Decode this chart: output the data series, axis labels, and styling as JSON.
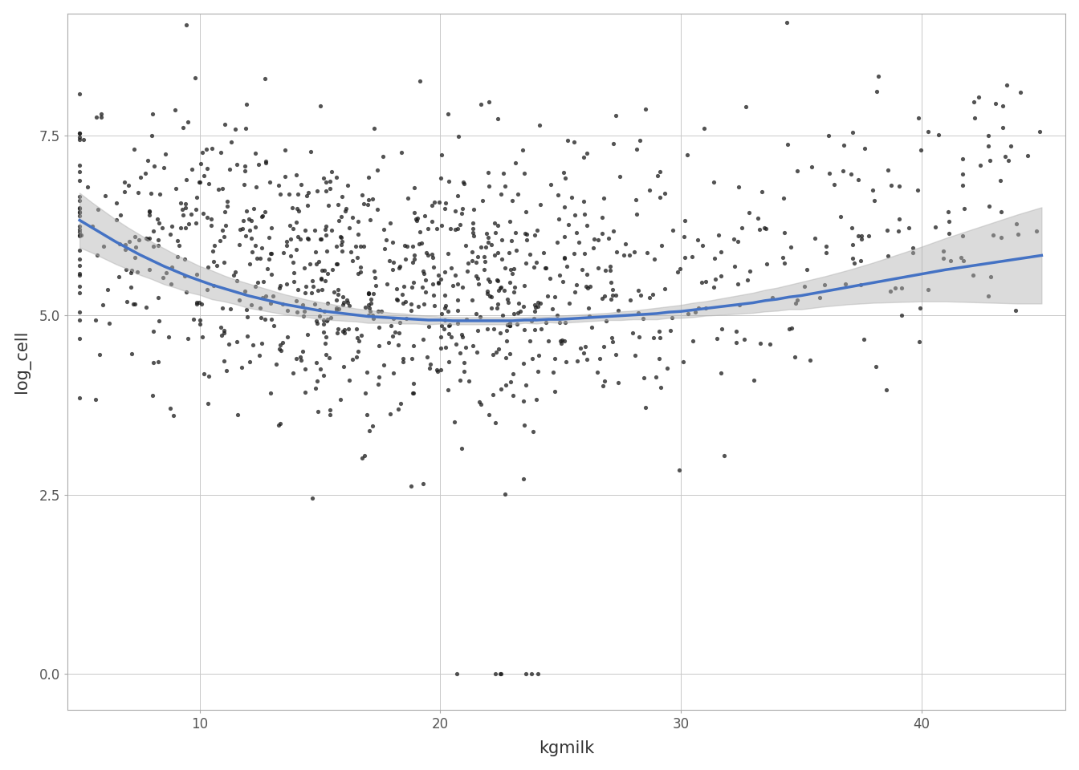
{
  "xlabel": "kgmilk",
  "ylabel": "log_cell",
  "xlim": [
    4.5,
    46
  ],
  "ylim": [
    -0.5,
    9.2
  ],
  "xticks": [
    10,
    20,
    30,
    40
  ],
  "yticks": [
    0.0,
    2.5,
    5.0,
    7.5
  ],
  "scatter_color": "#1a1a1a",
  "scatter_alpha": 0.75,
  "scatter_size": 14,
  "smooth_color": "#4472c4",
  "smooth_linewidth": 2.5,
  "ci_color": "#b0b0b0",
  "ci_alpha": 0.45,
  "background_color": "#ffffff",
  "panel_background": "#ffffff",
  "grid_color": "#c8c8c8",
  "axis_label_fontsize": 15,
  "tick_fontsize": 12,
  "random_seed": 99,
  "n_points": 1100,
  "smooth_x": [
    5.0,
    5.5,
    6.0,
    6.5,
    7.0,
    7.5,
    8.0,
    8.5,
    9.0,
    9.5,
    10.0,
    10.5,
    11.0,
    11.5,
    12.0,
    12.5,
    13.0,
    13.5,
    14.0,
    14.5,
    15.0,
    15.5,
    16.0,
    16.5,
    17.0,
    17.5,
    18.0,
    18.5,
    19.0,
    19.5,
    20.0,
    20.5,
    21.0,
    21.5,
    22.0,
    22.5,
    23.0,
    23.5,
    24.0,
    24.5,
    25.0,
    25.5,
    26.0,
    26.5,
    27.0,
    27.5,
    28.0,
    28.5,
    29.0,
    29.5,
    30.0,
    30.5,
    31.0,
    31.5,
    32.0,
    32.5,
    33.0,
    33.5,
    34.0,
    34.5,
    35.0,
    36.0,
    37.0,
    38.0,
    39.0,
    40.0,
    41.0,
    42.0,
    43.0,
    44.0,
    45.0
  ],
  "smooth_y": [
    6.32,
    6.22,
    6.12,
    6.02,
    5.93,
    5.84,
    5.76,
    5.68,
    5.61,
    5.54,
    5.48,
    5.42,
    5.37,
    5.32,
    5.27,
    5.23,
    5.19,
    5.15,
    5.12,
    5.09,
    5.06,
    5.04,
    5.02,
    5.0,
    4.98,
    4.97,
    4.96,
    4.95,
    4.94,
    4.93,
    4.93,
    4.92,
    4.92,
    4.92,
    4.92,
    4.92,
    4.92,
    4.93,
    4.93,
    4.94,
    4.94,
    4.95,
    4.96,
    4.97,
    4.98,
    4.99,
    5.0,
    5.01,
    5.02,
    5.04,
    5.05,
    5.07,
    5.09,
    5.11,
    5.13,
    5.15,
    5.17,
    5.2,
    5.22,
    5.25,
    5.27,
    5.33,
    5.39,
    5.45,
    5.51,
    5.57,
    5.63,
    5.68,
    5.73,
    5.78,
    5.83
  ],
  "smooth_ci_upper": [
    6.7,
    6.57,
    6.45,
    6.33,
    6.22,
    6.12,
    6.02,
    5.93,
    5.84,
    5.76,
    5.68,
    5.62,
    5.55,
    5.49,
    5.44,
    5.39,
    5.34,
    5.29,
    5.25,
    5.21,
    5.18,
    5.15,
    5.12,
    5.09,
    5.07,
    5.05,
    5.03,
    5.02,
    5.0,
    4.99,
    4.98,
    4.97,
    4.97,
    4.97,
    4.97,
    4.97,
    4.97,
    4.97,
    4.98,
    4.98,
    4.99,
    5.0,
    5.01,
    5.02,
    5.03,
    5.05,
    5.06,
    5.08,
    5.1,
    5.12,
    5.14,
    5.17,
    5.19,
    5.22,
    5.25,
    5.28,
    5.31,
    5.35,
    5.38,
    5.42,
    5.46,
    5.54,
    5.63,
    5.73,
    5.84,
    5.95,
    6.07,
    6.18,
    6.29,
    6.4,
    6.5
  ],
  "smooth_ci_lower": [
    5.94,
    5.87,
    5.79,
    5.71,
    5.64,
    5.56,
    5.5,
    5.43,
    5.38,
    5.32,
    5.28,
    5.22,
    5.19,
    5.15,
    5.1,
    5.07,
    5.04,
    5.01,
    4.99,
    4.97,
    4.94,
    4.93,
    4.92,
    4.91,
    4.89,
    4.89,
    4.89,
    4.88,
    4.88,
    4.87,
    4.88,
    4.87,
    4.87,
    4.87,
    4.87,
    4.87,
    4.87,
    4.89,
    4.88,
    4.9,
    4.89,
    4.9,
    4.91,
    4.92,
    4.93,
    4.93,
    4.94,
    4.94,
    4.94,
    4.96,
    4.96,
    4.97,
    4.99,
    5.0,
    5.01,
    5.02,
    5.03,
    5.05,
    5.06,
    5.08,
    5.08,
    5.12,
    5.15,
    5.17,
    5.18,
    5.19,
    5.19,
    5.18,
    5.17,
    5.16,
    5.16
  ]
}
